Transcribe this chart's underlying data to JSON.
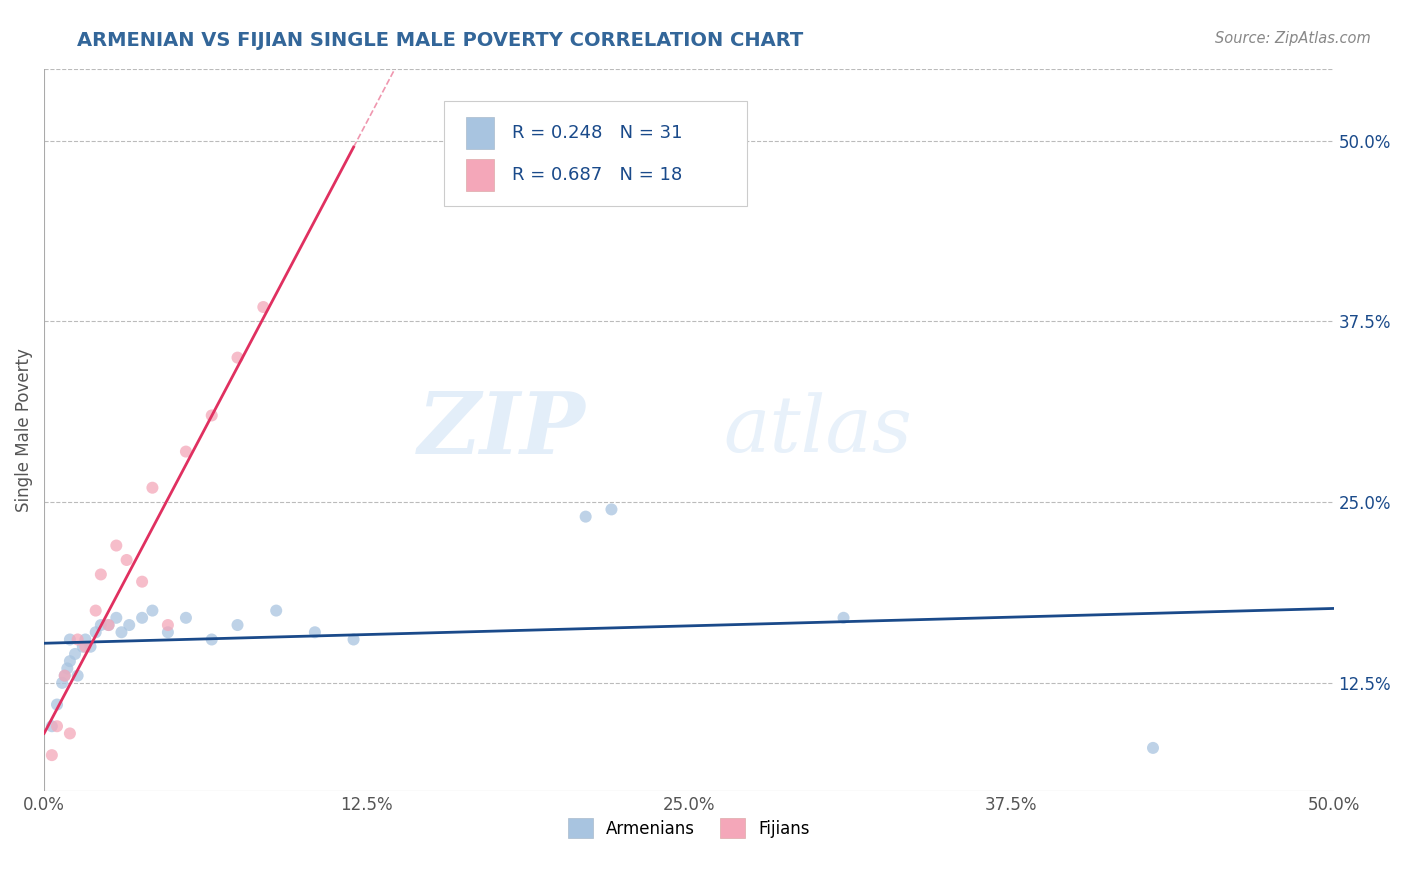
{
  "title": "ARMENIAN VS FIJIAN SINGLE MALE POVERTY CORRELATION CHART",
  "source_text": "Source: ZipAtlas.com",
  "ylabel": "Single Male Poverty",
  "xlim": [
    0.0,
    0.5
  ],
  "ylim": [
    0.05,
    0.55
  ],
  "xtick_labels": [
    "0.0%",
    "",
    "12.5%",
    "",
    "25.0%",
    "",
    "37.5%",
    "",
    "50.0%"
  ],
  "xtick_vals": [
    0.0,
    0.0625,
    0.125,
    0.1875,
    0.25,
    0.3125,
    0.375,
    0.4375,
    0.5
  ],
  "xtick_display_labels": [
    "0.0%",
    "12.5%",
    "25.0%",
    "37.5%",
    "50.0%"
  ],
  "xtick_display_vals": [
    0.0,
    0.125,
    0.25,
    0.375,
    0.5
  ],
  "ytick_labels": [
    "12.5%",
    "25.0%",
    "37.5%",
    "50.0%"
  ],
  "ytick_vals": [
    0.125,
    0.25,
    0.375,
    0.5
  ],
  "armenian_color": "#a8c4e0",
  "fijian_color": "#f4a7b9",
  "armenian_line_color": "#1a4a8a",
  "fijian_line_color": "#e03060",
  "watermark_zip": "ZIP",
  "watermark_atlas": "atlas",
  "legend_r_armenian": "R = 0.248",
  "legend_n_armenian": "N = 31",
  "legend_r_fijian": "R = 0.687",
  "legend_n_fijian": "N = 18",
  "armenian_x": [
    0.003,
    0.005,
    0.007,
    0.008,
    0.009,
    0.01,
    0.01,
    0.012,
    0.013,
    0.015,
    0.016,
    0.018,
    0.02,
    0.022,
    0.025,
    0.028,
    0.03,
    0.033,
    0.038,
    0.042,
    0.048,
    0.055,
    0.065,
    0.075,
    0.09,
    0.105,
    0.12,
    0.21,
    0.22,
    0.31,
    0.43
  ],
  "armenian_y": [
    0.095,
    0.11,
    0.125,
    0.13,
    0.135,
    0.14,
    0.155,
    0.145,
    0.13,
    0.15,
    0.155,
    0.15,
    0.16,
    0.165,
    0.165,
    0.17,
    0.16,
    0.165,
    0.17,
    0.175,
    0.16,
    0.17,
    0.155,
    0.165,
    0.175,
    0.16,
    0.155,
    0.24,
    0.245,
    0.17,
    0.08
  ],
  "fijian_x": [
    0.003,
    0.005,
    0.008,
    0.01,
    0.013,
    0.016,
    0.02,
    0.022,
    0.025,
    0.028,
    0.032,
    0.038,
    0.042,
    0.048,
    0.055,
    0.065,
    0.075,
    0.085
  ],
  "fijian_y": [
    0.075,
    0.095,
    0.13,
    0.09,
    0.155,
    0.15,
    0.175,
    0.2,
    0.165,
    0.22,
    0.21,
    0.195,
    0.26,
    0.165,
    0.285,
    0.31,
    0.35,
    0.385
  ],
  "background_color": "#ffffff",
  "grid_color": "#bbbbbb",
  "title_color": "#336699",
  "source_color": "#888888",
  "marker_size": 75,
  "marker_alpha": 0.75
}
